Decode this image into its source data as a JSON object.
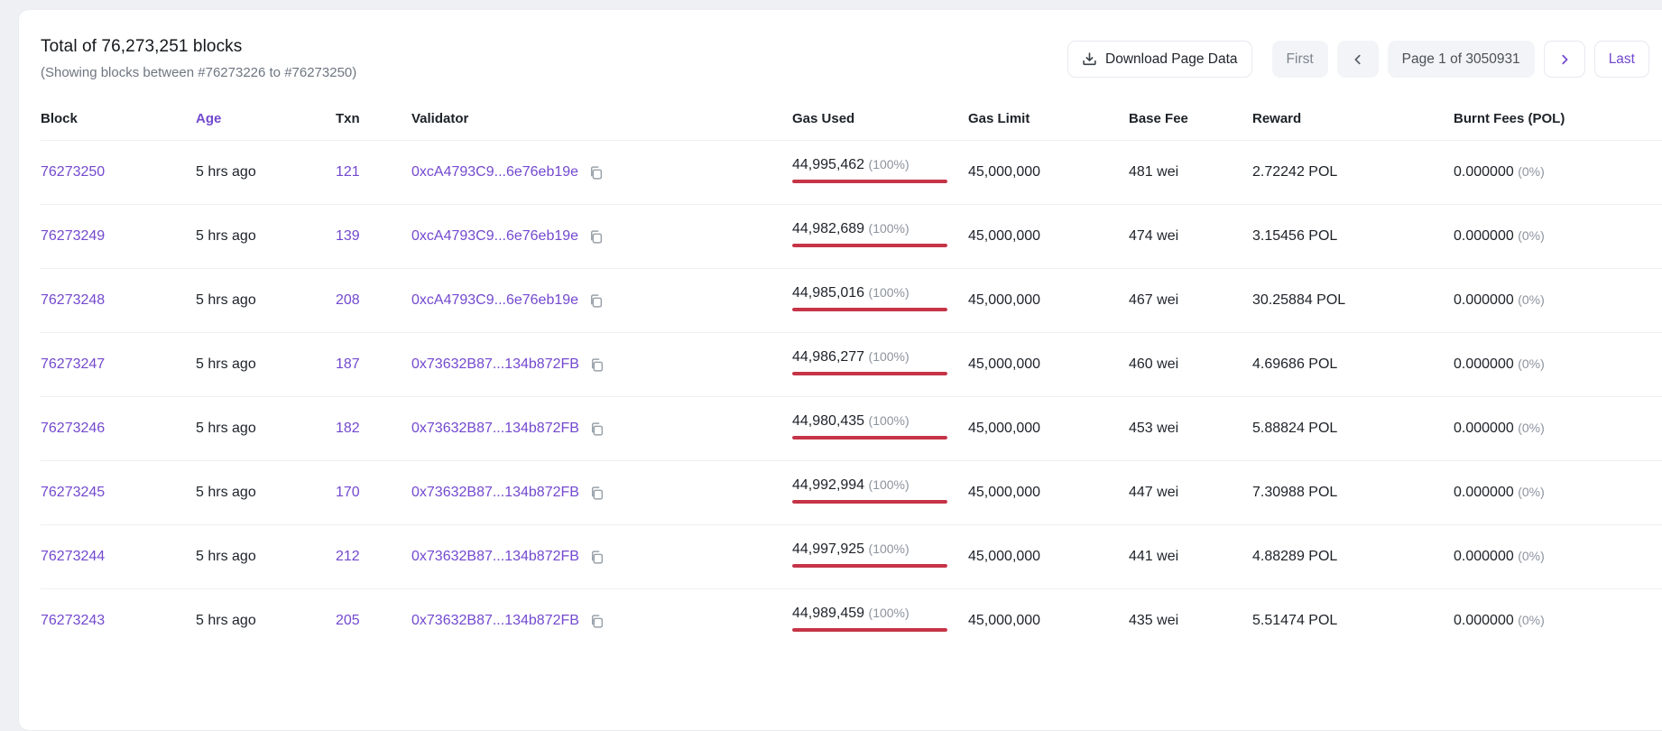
{
  "colors": {
    "accent_purple": "#7349cf",
    "gas_bar_red": "#c63447",
    "page_background": "#eef0f4",
    "card_background": "#ffffff",
    "muted_text": "#8b949e"
  },
  "header": {
    "title": "Total of 76,273,251 blocks",
    "subtitle": "(Showing blocks between #76273226 to #76273250)"
  },
  "toolbar": {
    "download_label": "Download Page Data",
    "first_label": "First",
    "page_label": "Page 1 of 3050931",
    "last_label": "Last"
  },
  "table": {
    "columns": [
      "Block",
      "Age",
      "Txn",
      "Validator",
      "Gas Used",
      "Gas Limit",
      "Base Fee",
      "Reward",
      "Burnt Fees (POL)"
    ],
    "rows": [
      {
        "block": "76273250",
        "age": "5 hrs ago",
        "txn": "121",
        "validator": "0xcA4793C9...6e76eb19e",
        "gas_used": "44,995,462",
        "gas_used_pct": "(100%)",
        "gas_bar_pct": 100,
        "gas_limit": "45,000,000",
        "base_fee": "481 wei",
        "reward": "2.72242 POL",
        "burnt_fees": "0.000000",
        "burnt_pct": "(0%)"
      },
      {
        "block": "76273249",
        "age": "5 hrs ago",
        "txn": "139",
        "validator": "0xcA4793C9...6e76eb19e",
        "gas_used": "44,982,689",
        "gas_used_pct": "(100%)",
        "gas_bar_pct": 100,
        "gas_limit": "45,000,000",
        "base_fee": "474 wei",
        "reward": "3.15456 POL",
        "burnt_fees": "0.000000",
        "burnt_pct": "(0%)"
      },
      {
        "block": "76273248",
        "age": "5 hrs ago",
        "txn": "208",
        "validator": "0xcA4793C9...6e76eb19e",
        "gas_used": "44,985,016",
        "gas_used_pct": "(100%)",
        "gas_bar_pct": 100,
        "gas_limit": "45,000,000",
        "base_fee": "467 wei",
        "reward": "30.25884 POL",
        "burnt_fees": "0.000000",
        "burnt_pct": "(0%)"
      },
      {
        "block": "76273247",
        "age": "5 hrs ago",
        "txn": "187",
        "validator": "0x73632B87...134b872FB",
        "gas_used": "44,986,277",
        "gas_used_pct": "(100%)",
        "gas_bar_pct": 100,
        "gas_limit": "45,000,000",
        "base_fee": "460 wei",
        "reward": "4.69686 POL",
        "burnt_fees": "0.000000",
        "burnt_pct": "(0%)"
      },
      {
        "block": "76273246",
        "age": "5 hrs ago",
        "txn": "182",
        "validator": "0x73632B87...134b872FB",
        "gas_used": "44,980,435",
        "gas_used_pct": "(100%)",
        "gas_bar_pct": 100,
        "gas_limit": "45,000,000",
        "base_fee": "453 wei",
        "reward": "5.88824 POL",
        "burnt_fees": "0.000000",
        "burnt_pct": "(0%)"
      },
      {
        "block": "76273245",
        "age": "5 hrs ago",
        "txn": "170",
        "validator": "0x73632B87...134b872FB",
        "gas_used": "44,992,994",
        "gas_used_pct": "(100%)",
        "gas_bar_pct": 100,
        "gas_limit": "45,000,000",
        "base_fee": "447 wei",
        "reward": "7.30988 POL",
        "burnt_fees": "0.000000",
        "burnt_pct": "(0%)"
      },
      {
        "block": "76273244",
        "age": "5 hrs ago",
        "txn": "212",
        "validator": "0x73632B87...134b872FB",
        "gas_used": "44,997,925",
        "gas_used_pct": "(100%)",
        "gas_bar_pct": 100,
        "gas_limit": "45,000,000",
        "base_fee": "441 wei",
        "reward": "4.88289 POL",
        "burnt_fees": "0.000000",
        "burnt_pct": "(0%)"
      },
      {
        "block": "76273243",
        "age": "5 hrs ago",
        "txn": "205",
        "validator": "0x73632B87...134b872FB",
        "gas_used": "44,989,459",
        "gas_used_pct": "(100%)",
        "gas_bar_pct": 100,
        "gas_limit": "45,000,000",
        "base_fee": "435 wei",
        "reward": "5.51474 POL",
        "burnt_fees": "0.000000",
        "burnt_pct": "(0%)"
      }
    ]
  }
}
